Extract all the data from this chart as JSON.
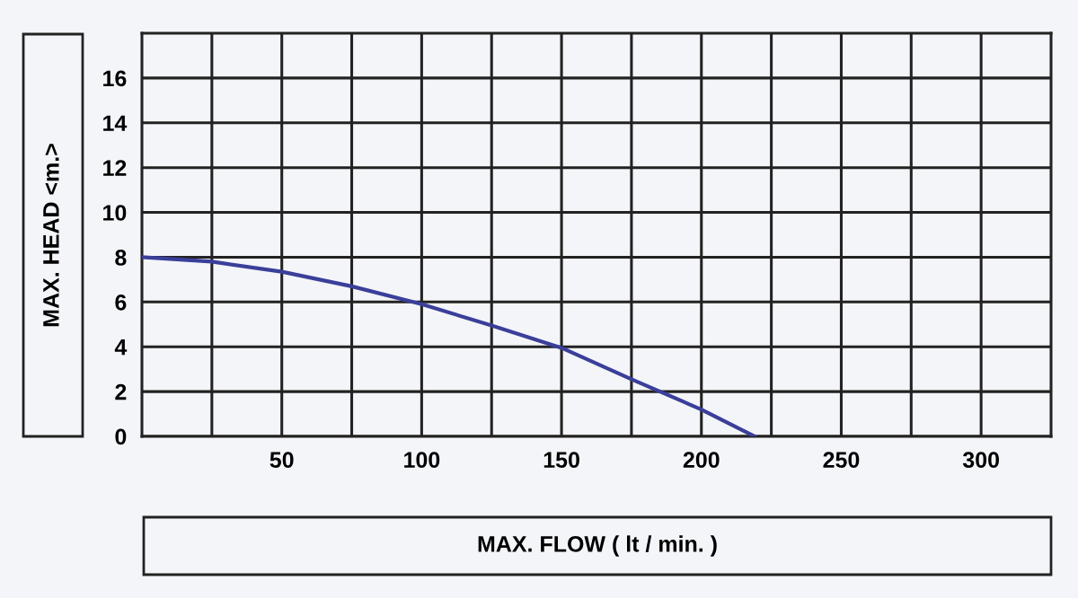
{
  "chart_data": {
    "type": "line",
    "xlabel": "MAX. FLOW ( lt / min. )",
    "ylabel": "MAX. HEAD <m.>",
    "x": [
      0,
      25,
      50,
      75,
      100,
      125,
      150,
      175,
      200,
      219
    ],
    "series": [
      {
        "color": "#3a3f9a",
        "values": [
          8,
          7.8,
          7.35,
          6.7,
          5.9,
          4.95,
          3.95,
          2.55,
          1.2,
          0
        ]
      }
    ],
    "xlim": [
      0,
      325
    ],
    "ylim": [
      0,
      18
    ],
    "xticks": [
      {
        "value": 25,
        "label": null
      },
      50,
      {
        "value": 75,
        "label": null
      },
      100,
      {
        "value": 125,
        "label": null
      },
      150,
      {
        "value": 175,
        "label": null
      },
      200,
      {
        "value": 225,
        "label": null
      },
      250,
      {
        "value": 275,
        "label": null
      },
      300
    ],
    "yticks": [
      0,
      2,
      4,
      6,
      8,
      10,
      12,
      14,
      16
    ],
    "grid": true,
    "legend": false,
    "marker": "none",
    "line_style": "solid"
  }
}
